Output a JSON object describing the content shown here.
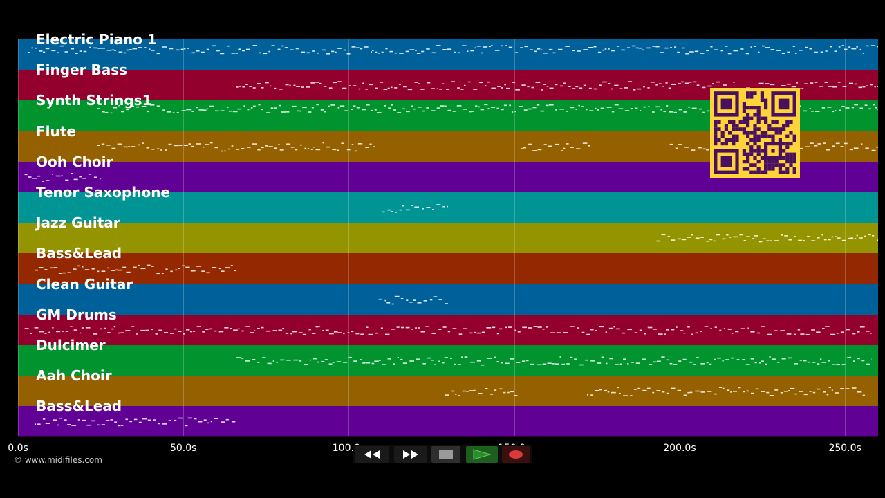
{
  "timeline": {
    "duration_s": 260,
    "ticks": [
      {
        "value": 0,
        "label": "0.0s"
      },
      {
        "value": 50,
        "label": "50.0s"
      },
      {
        "value": 100,
        "label": "100.0s"
      },
      {
        "value": 150,
        "label": "150.0s"
      },
      {
        "value": 200,
        "label": "200.0s"
      },
      {
        "value": 250,
        "label": "250.0s"
      }
    ]
  },
  "tracks": [
    {
      "name": "Electric Piano 1",
      "color": "#00609a",
      "segments": [
        [
          3,
          107
        ],
        [
          107,
          260
        ]
      ]
    },
    {
      "name": "Finger Bass",
      "color": "#93002e",
      "segments": [
        [
          66,
          260
        ]
      ]
    },
    {
      "name": "Synth Strings1",
      "color": "#00932e",
      "segments": [
        [
          24,
          260
        ]
      ]
    },
    {
      "name": "Flute",
      "color": "#946000",
      "segments": [
        [
          24,
          108
        ],
        [
          152,
          173
        ],
        [
          197,
          260
        ]
      ]
    },
    {
      "name": "Ooh Choir",
      "color": "#600094",
      "segments": [
        [
          2,
          25
        ]
      ]
    },
    {
      "name": "Tenor Saxophone",
      "color": "#009494",
      "segments": [
        [
          110,
          130
        ]
      ]
    },
    {
      "name": "Jazz Guitar",
      "color": "#949400",
      "segments": [
        [
          193,
          260
        ]
      ]
    },
    {
      "name": "Bass&Lead",
      "color": "#942800",
      "segments": [
        [
          5,
          66
        ]
      ]
    },
    {
      "name": "Clean Guitar",
      "color": "#00609a",
      "segments": [
        [
          109,
          130
        ]
      ]
    },
    {
      "name": "GM Drums",
      "color": "#93002e",
      "segments": [
        [
          2,
          258
        ]
      ]
    },
    {
      "name": "Dulcimer",
      "color": "#00932e",
      "segments": [
        [
          66,
          258
        ]
      ]
    },
    {
      "name": "Aah Choir",
      "color": "#946000",
      "segments": [
        [
          129,
          151
        ],
        [
          172,
          256
        ]
      ]
    },
    {
      "name": "Bass&Lead",
      "color": "#600094",
      "segments": [
        [
          5,
          66
        ]
      ]
    }
  ],
  "copyright": "© www.midifiles.com",
  "controls": {
    "rewind": "rewind-icon",
    "fast_forward": "fast-forward-icon",
    "stop": "stop-icon",
    "play": "play-icon",
    "record": "record-icon",
    "play_color": "#2e8b2e",
    "record_color": "#d93a3a"
  },
  "qr_color": "#ffd33a"
}
